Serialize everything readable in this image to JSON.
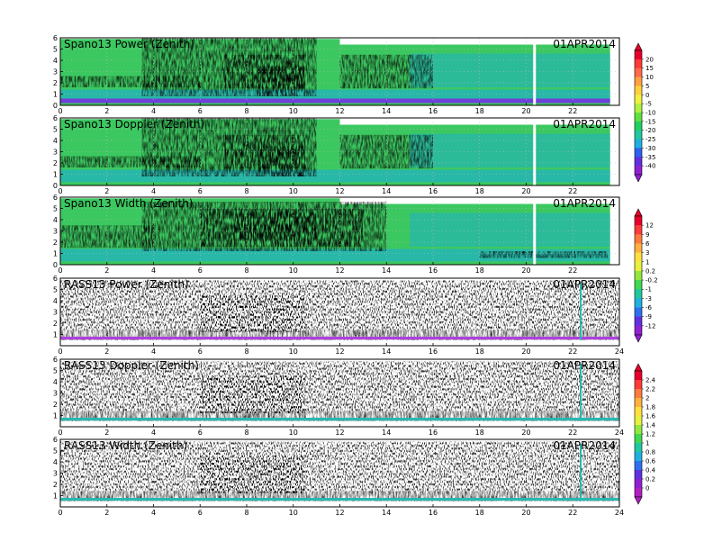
{
  "chart_data": [
    {
      "type": "heatmap",
      "title": "Spano13 Power (Zenith)",
      "date": "01APR2014",
      "xlim": [
        0,
        24
      ],
      "ylim": [
        0,
        6
      ],
      "x_ticks": [
        "0",
        "2",
        "4",
        "6",
        "8",
        "10",
        "12",
        "14",
        "16",
        "18",
        "20",
        "22"
      ],
      "y_ticks": [
        "0",
        "1",
        "2",
        "3",
        "4",
        "5",
        "6"
      ],
      "colorbar": "power",
      "grid": true
    },
    {
      "type": "heatmap",
      "title": "Spano13 Doppler (Zenith)",
      "date": "01APR2014",
      "xlim": [
        0,
        24
      ],
      "ylim": [
        0,
        6
      ],
      "x_ticks": [
        "0",
        "2",
        "4",
        "6",
        "8",
        "10",
        "12",
        "14",
        "16",
        "18",
        "20",
        "22"
      ],
      "y_ticks": [
        "0",
        "1",
        "2",
        "3",
        "4",
        "5",
        "6"
      ],
      "colorbar": "power",
      "grid": true
    },
    {
      "type": "heatmap",
      "title": "Spano13 Width (Zenith)",
      "date": "01APR2014",
      "xlim": [
        0,
        24
      ],
      "ylim": [
        0,
        6
      ],
      "x_ticks": [
        "0",
        "2",
        "4",
        "6",
        "8",
        "10",
        "12",
        "14",
        "16",
        "18",
        "20",
        "22"
      ],
      "y_ticks": [
        "0",
        "1",
        "2",
        "3",
        "4",
        "5",
        "6"
      ],
      "colorbar": "width",
      "grid": true
    },
    {
      "type": "heatmap",
      "title": "RASS13 Power (Zenith)",
      "date": "01APR2014",
      "xlim": [
        0,
        24
      ],
      "ylim": [
        0,
        6
      ],
      "x_ticks": [
        "0",
        "2",
        "4",
        "6",
        "8",
        "10",
        "12",
        "14",
        "16",
        "18",
        "20",
        "22",
        "24"
      ],
      "y_ticks": [
        "1",
        "2",
        "3",
        "4",
        "5",
        "6"
      ],
      "colorbar": "width",
      "grid": true
    },
    {
      "type": "heatmap",
      "title": "RASS13 Doppler (Zenith)",
      "date": "01APR2014",
      "xlim": [
        0,
        24
      ],
      "ylim": [
        0,
        6
      ],
      "x_ticks": [
        "0",
        "2",
        "4",
        "6",
        "8",
        "10",
        "12",
        "14",
        "16",
        "18",
        "20",
        "22",
        "24"
      ],
      "y_ticks": [
        "1",
        "2",
        "3",
        "4",
        "5",
        "6"
      ],
      "colorbar": "rass",
      "grid": true
    },
    {
      "type": "heatmap",
      "title": "RASS13 Width (Zenith)",
      "date": "01APR2014",
      "xlim": [
        0,
        24
      ],
      "ylim": [
        0,
        6
      ],
      "x_ticks": [
        "0",
        "2",
        "4",
        "6",
        "8",
        "10",
        "12",
        "14",
        "16",
        "18",
        "20",
        "22",
        "24"
      ],
      "y_ticks": [
        "1",
        "2",
        "3",
        "4",
        "5",
        "6"
      ],
      "colorbar": "rass",
      "grid": true
    }
  ],
  "colorbars": [
    {
      "id": "power",
      "labels": [
        "20",
        "15",
        "10",
        "5",
        "0",
        "-5",
        "-10",
        "-15",
        "-20",
        "-25",
        "-30",
        "-35",
        "-40"
      ],
      "colors": [
        "#e8002a",
        "#ff3a3a",
        "#ff6a4a",
        "#ffa040",
        "#ffd040",
        "#f0f040",
        "#b0f040",
        "#60e040",
        "#20d060",
        "#20c8a0",
        "#20b0e0",
        "#3060f0",
        "#6030e0",
        "#9020d0"
      ]
    },
    {
      "id": "width",
      "labels": [
        "12",
        "9",
        "6",
        "3",
        "1",
        "0.2",
        "-0.2",
        "-1",
        "-3",
        "-6",
        "-9",
        "-12"
      ],
      "colors": [
        "#e8002a",
        "#ff3a3a",
        "#ff7a40",
        "#ffb040",
        "#ffe040",
        "#e8f040",
        "#90e840",
        "#40d850",
        "#20c8a0",
        "#20b0e0",
        "#3070f0",
        "#6030e0",
        "#9020d0"
      ]
    },
    {
      "id": "rass",
      "labels": [
        "2.4",
        "2.2",
        "2",
        "1.8",
        "1.6",
        "1.4",
        "1.2",
        "1",
        "0.8",
        "0.6",
        "0.4",
        "0.2",
        "0"
      ],
      "colors": [
        "#e8002a",
        "#ff3a3a",
        "#ff7a40",
        "#ffb040",
        "#ffe040",
        "#e8f040",
        "#90e840",
        "#40d850",
        "#20c8a0",
        "#20b0e0",
        "#3070f0",
        "#6030e0",
        "#9020d0",
        "#b020c0"
      ]
    }
  ]
}
